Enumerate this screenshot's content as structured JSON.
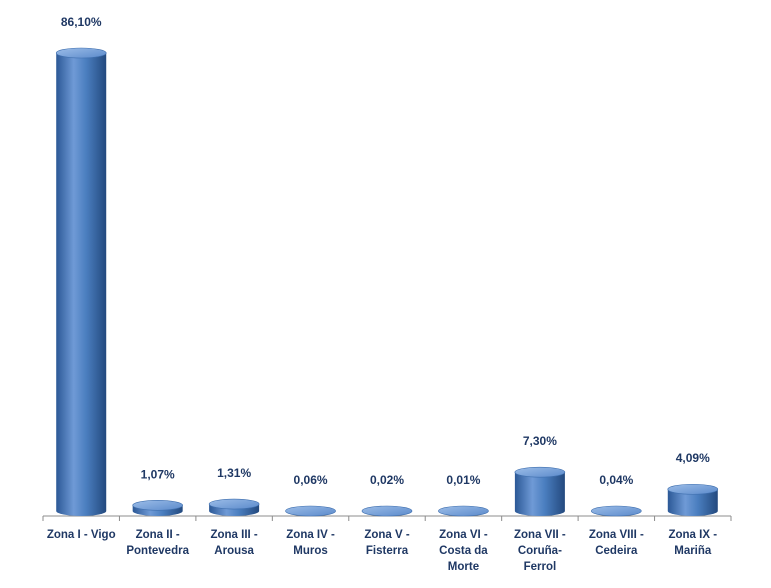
{
  "chart_data": {
    "type": "bar",
    "title": "",
    "xlabel": "",
    "ylabel": "",
    "ylim": [
      0,
      86.1
    ],
    "grid": false,
    "categories": [
      [
        "Zona I - Vigo"
      ],
      [
        "Zona II -",
        "Pontevedra"
      ],
      [
        "Zona III -",
        "Arousa"
      ],
      [
        "Zona IV -",
        "Muros"
      ],
      [
        "Zona V -",
        "Fisterra"
      ],
      [
        "Zona VI -",
        "Costa da",
        "Morte"
      ],
      [
        "Zona VII -",
        "Coruña-",
        "Ferrol"
      ],
      [
        "Zona VIII -",
        "Cedeira"
      ],
      [
        "Zona IX -",
        "Mariña"
      ]
    ],
    "values": [
      86.1,
      1.07,
      1.31,
      0.06,
      0.02,
      0.01,
      7.3,
      0.04,
      4.09
    ],
    "data_labels": [
      "86,10%",
      "1,07%",
      "1,31%",
      "0,06%",
      "0,02%",
      "0,01%",
      "7,30%",
      "0,04%",
      "4,09%"
    ],
    "colors": {
      "bar": "#4a7ebf",
      "bar_dark": "#2d5a94",
      "bar_light": "#8fb4e3",
      "axis": "#8c8c8c",
      "text": "#1f3864"
    }
  }
}
